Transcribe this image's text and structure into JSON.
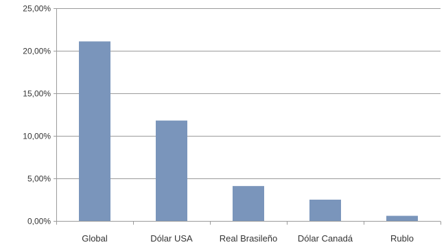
{
  "chart_data": {
    "type": "bar",
    "title": "",
    "xlabel": "",
    "ylabel": "",
    "categories": [
      "Global",
      "Dólar USA",
      "Real Brasileño",
      "Dólar Canadá",
      "Rublo"
    ],
    "values": [
      21.1,
      11.8,
      4.1,
      2.5,
      0.6
    ],
    "ylim": [
      0,
      25
    ],
    "yticks": [
      0,
      5,
      10,
      15,
      20,
      25
    ],
    "ytick_labels": [
      "0,00%",
      "5,00%",
      "10,00%",
      "15,00%",
      "20,00%",
      "25,00%"
    ],
    "grid": true,
    "legend": "none",
    "bar_color": "#7a95bb",
    "grid_color": "#9a9a9a"
  }
}
